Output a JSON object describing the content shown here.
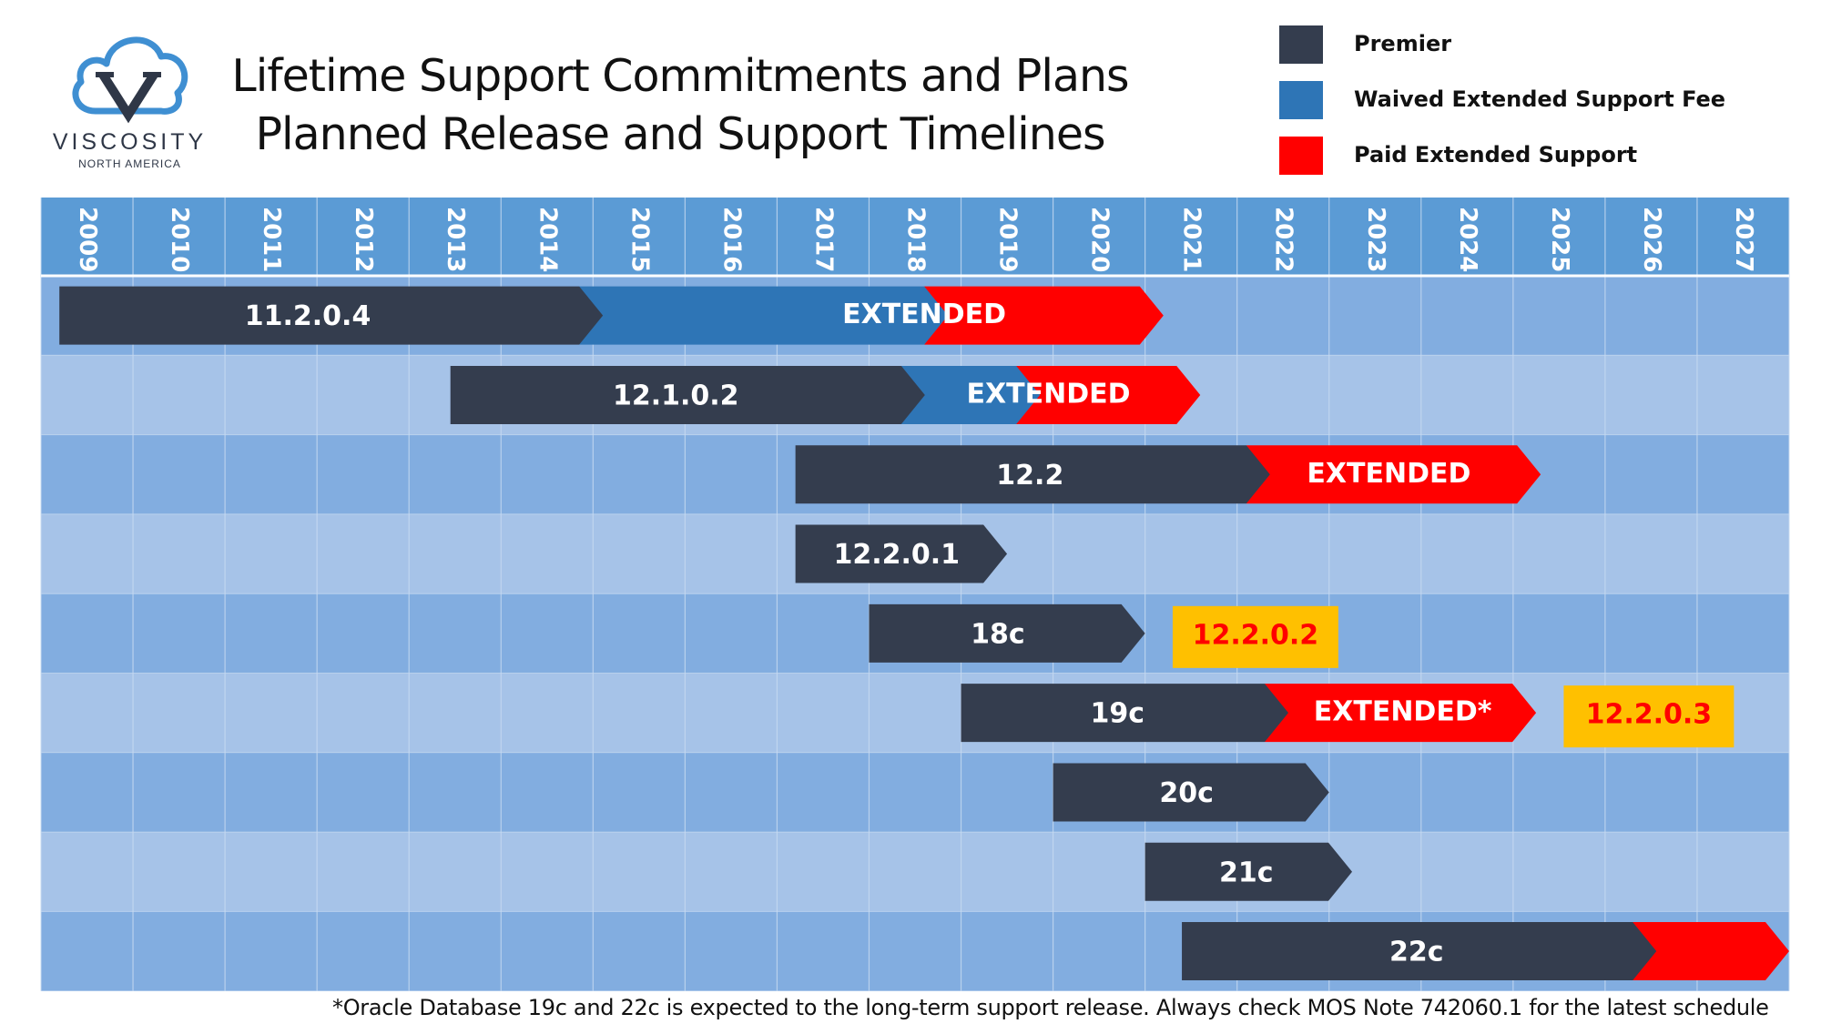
{
  "logo": {
    "name": "VISCOSITY",
    "subtitle": "NORTH AMERICA"
  },
  "title": {
    "line1": "Lifetime Support Commitments and Plans",
    "line2": "Planned Release and Support Timelines"
  },
  "legend": [
    {
      "label": "Premier",
      "color": "#343d4e"
    },
    {
      "label": "Waived Extended Support Fee",
      "color": "#2e75b6"
    },
    {
      "label": "Paid Extended Support",
      "color": "#ff0000"
    }
  ],
  "colors": {
    "premier": "#343d4e",
    "waived": "#2e75b6",
    "paid": "#ff0000",
    "badge": "#ffc000",
    "badge_text": "#ff0000",
    "header_bg": "#5b9bd5",
    "row_dark": "#82ade0",
    "row_light": "#a6c3e8",
    "grid_line": "#c7daf1"
  },
  "chart_data": {
    "type": "timeline",
    "title": "Lifetime Support Commitments and Plans – Planned Release and Support Timelines",
    "years": [
      "2009",
      "2010",
      "2011",
      "2012",
      "2013",
      "2014",
      "2015",
      "2016",
      "2017",
      "2018",
      "2019",
      "2020",
      "2021",
      "2022",
      "2023",
      "2024",
      "2025",
      "2026",
      "2027"
    ],
    "x_range": [
      2009,
      2028
    ],
    "rows": [
      {
        "release": "11.2.0.4",
        "segments": [
          {
            "kind": "premier",
            "start": 2009.2,
            "end": 2014.85
          },
          {
            "kind": "waived",
            "start": 2014.85,
            "end": 2018.6
          },
          {
            "kind": "paid",
            "start": 2018.6,
            "end": 2021.2
          }
        ],
        "label": "11.2.0.4",
        "label_at": 2011.9,
        "ext_label": "EXTENDED",
        "ext_label_at": 2018.6
      },
      {
        "release": "12.1.0.2",
        "segments": [
          {
            "kind": "premier",
            "start": 2013.45,
            "end": 2018.35
          },
          {
            "kind": "waived",
            "start": 2018.35,
            "end": 2019.6
          },
          {
            "kind": "paid",
            "start": 2019.6,
            "end": 2021.6
          }
        ],
        "label": "12.1.0.2",
        "label_at": 2015.9,
        "ext_label": "EXTENDED",
        "ext_label_at": 2019.95
      },
      {
        "release": "12.2",
        "segments": [
          {
            "kind": "premier",
            "start": 2017.2,
            "end": 2022.1
          },
          {
            "kind": "paid",
            "start": 2022.1,
            "end": 2025.3
          }
        ],
        "label": "12.2",
        "label_at": 2019.75,
        "ext_label": "EXTENDED",
        "ext_label_at": 2023.65
      },
      {
        "release": "12.2.0.1",
        "segments": [
          {
            "kind": "premier",
            "start": 2017.2,
            "end": 2019.5
          }
        ],
        "label": "12.2.0.1",
        "label_at": 2018.3
      },
      {
        "release": "18c",
        "segments": [
          {
            "kind": "premier",
            "start": 2018.0,
            "end": 2021.0
          }
        ],
        "label": "18c",
        "label_at": 2019.4,
        "badge": {
          "label": "12.2.0.2",
          "start": 2021.3,
          "end": 2023.1
        }
      },
      {
        "release": "19c",
        "segments": [
          {
            "kind": "premier",
            "start": 2019.0,
            "end": 2022.3
          },
          {
            "kind": "paid",
            "start": 2022.3,
            "end": 2025.25
          }
        ],
        "label": "19c",
        "label_at": 2020.7,
        "ext_label": "EXTENDED*",
        "ext_label_at": 2023.8,
        "badge": {
          "label": "12.2.0.3",
          "start": 2025.55,
          "end": 2027.4
        }
      },
      {
        "release": "20c",
        "segments": [
          {
            "kind": "premier",
            "start": 2020.0,
            "end": 2023.0
          }
        ],
        "label": "20c",
        "label_at": 2021.45
      },
      {
        "release": "21c",
        "segments": [
          {
            "kind": "premier",
            "start": 2021.0,
            "end": 2023.25
          }
        ],
        "label": "21c",
        "label_at": 2022.1
      },
      {
        "release": "22c",
        "segments": [
          {
            "kind": "premier",
            "start": 2021.4,
            "end": 2026.3
          },
          {
            "kind": "paid",
            "start": 2026.3,
            "end": 2028.0
          }
        ],
        "label": "22c",
        "label_at": 2023.95
      }
    ]
  },
  "footnote": "*Oracle Database 19c and 22c is expected to the long-term support release. Always check MOS Note 742060.1 for the latest schedule"
}
